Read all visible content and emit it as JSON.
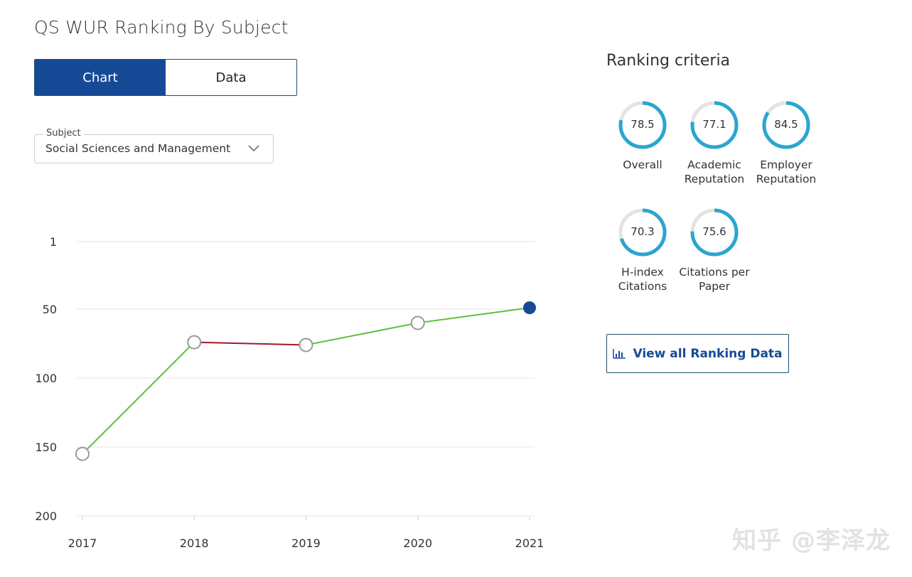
{
  "page": {
    "title": "QS WUR Ranking By Subject"
  },
  "view_toggle": {
    "chart_label": "Chart",
    "data_label": "Data",
    "active": "Chart"
  },
  "subject_select": {
    "legend": "Subject",
    "value": "Social Sciences and Management"
  },
  "ranking_criteria": {
    "title": "Ranking criteria",
    "items": [
      {
        "value": "78.5",
        "label_lines": [
          "Overall"
        ]
      },
      {
        "value": "77.1",
        "label_lines": [
          "Academic",
          "Reputation"
        ]
      },
      {
        "value": "84.5",
        "label_lines": [
          "Employer",
          "Reputation"
        ]
      },
      {
        "value": "70.3",
        "label_lines": [
          "H-index",
          "Citations"
        ]
      },
      {
        "value": "75.6",
        "label_lines": [
          "Citations per",
          "Paper"
        ]
      }
    ],
    "ring_color": "#2aa6cf",
    "ring_track_color": "#e3e3e3"
  },
  "view_all_button": {
    "label": "View all Ranking Data",
    "icon": "bar-chart-icon"
  },
  "watermark": {
    "text": "知乎 @李泽龙"
  },
  "colors": {
    "primary": "#174a96",
    "up_line": "#5dbf3a",
    "down_line": "#a0192d",
    "marker_last": "#174a96"
  },
  "chart_data": {
    "type": "line",
    "x": [
      2017,
      2018,
      2019,
      2020,
      2021
    ],
    "y": [
      155,
      74,
      76,
      60,
      49
    ],
    "ylim": [
      200,
      1
    ],
    "yticks": [
      1,
      50,
      100,
      150,
      200
    ],
    "y_inverted": true,
    "grid": true,
    "xlabel": "",
    "ylabel": ""
  }
}
